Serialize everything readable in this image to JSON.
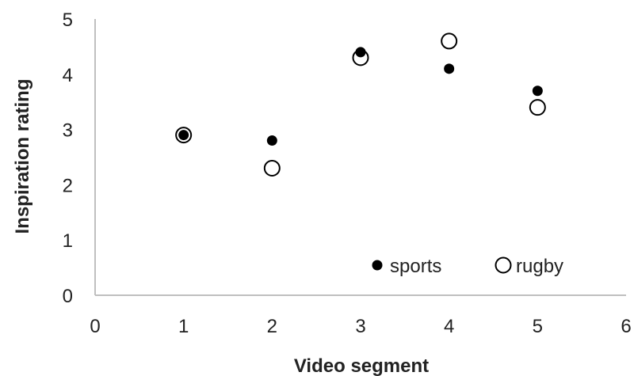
{
  "chart_data": {
    "type": "scatter",
    "title": "",
    "xlabel": "Video segment",
    "ylabel": "Inspiration rating",
    "xlim": [
      0,
      6
    ],
    "ylim": [
      0,
      5
    ],
    "xticks": [
      "0",
      "1",
      "2",
      "3",
      "4",
      "5",
      "6"
    ],
    "yticks": [
      "0",
      "1",
      "2",
      "3",
      "4",
      "5"
    ],
    "grid": false,
    "legend_position": "bottom-right",
    "series": [
      {
        "name": "sports",
        "marker": "filled-circle",
        "color": "#000000",
        "x": [
          1,
          2,
          3,
          4,
          5
        ],
        "y": [
          2.9,
          2.8,
          4.4,
          4.1,
          3.7
        ]
      },
      {
        "name": "rugby",
        "marker": "open-circle",
        "color": "#000000",
        "x": [
          1,
          2,
          3,
          4,
          5
        ],
        "y": [
          2.9,
          2.3,
          4.3,
          4.6,
          3.4
        ]
      }
    ]
  }
}
